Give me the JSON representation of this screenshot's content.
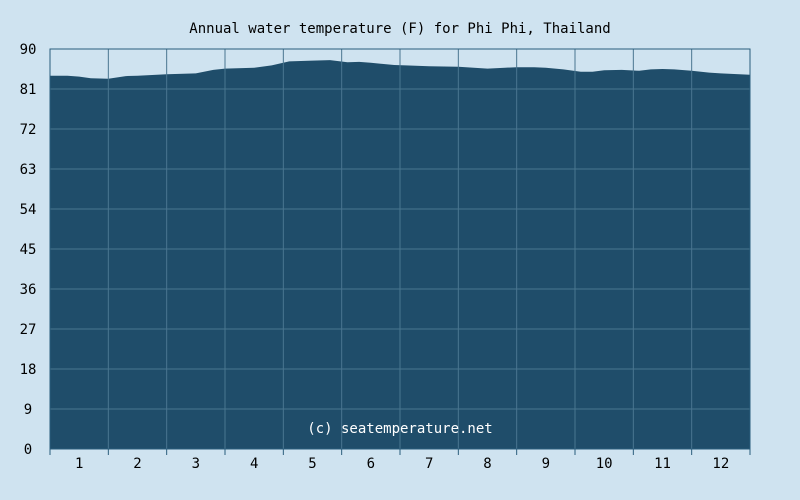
{
  "chart_data": {
    "type": "area",
    "title": "Annual water temperature (F) for Phi Phi, Thailand",
    "x_ticks": [
      "1",
      "2",
      "3",
      "4",
      "5",
      "6",
      "7",
      "8",
      "9",
      "10",
      "11",
      "12"
    ],
    "y_ticks": [
      "0",
      "9",
      "18",
      "27",
      "36",
      "45",
      "54",
      "63",
      "72",
      "81",
      "90"
    ],
    "ylim": [
      0,
      90
    ],
    "xlim": [
      0.5,
      12.5
    ],
    "grid": true,
    "watermark": "(c) seatemperature.net",
    "x": [
      0.5,
      0.8,
      1.0,
      1.2,
      1.5,
      1.8,
      2.0,
      2.5,
      3.0,
      3.3,
      3.5,
      4.0,
      4.3,
      4.6,
      5.0,
      5.3,
      5.6,
      5.8,
      6.0,
      6.4,
      6.6,
      7.0,
      7.5,
      8.0,
      8.3,
      8.5,
      8.8,
      9.0,
      9.3,
      9.6,
      9.8,
      10.0,
      10.3,
      10.6,
      10.8,
      11.0,
      11.2,
      11.5,
      11.8,
      12.0,
      12.5
    ],
    "values": [
      84.0,
      84.0,
      83.8,
      83.4,
      83.3,
      83.9,
      84.0,
      84.3,
      84.5,
      85.3,
      85.6,
      85.8,
      86.3,
      87.2,
      87.4,
      87.5,
      87.0,
      87.1,
      86.9,
      86.4,
      86.3,
      86.1,
      86.0,
      85.6,
      85.8,
      85.9,
      85.9,
      85.8,
      85.4,
      84.9,
      84.9,
      85.2,
      85.3,
      85.1,
      85.4,
      85.5,
      85.4,
      85.1,
      84.7,
      84.5,
      84.2
    ],
    "colors": {
      "background": "#cfe3f0",
      "fill": "#1f4d6a",
      "grid": "#4a7690",
      "border": "#2a5d7c",
      "text": "#000000",
      "watermark": "#ffffff"
    }
  }
}
